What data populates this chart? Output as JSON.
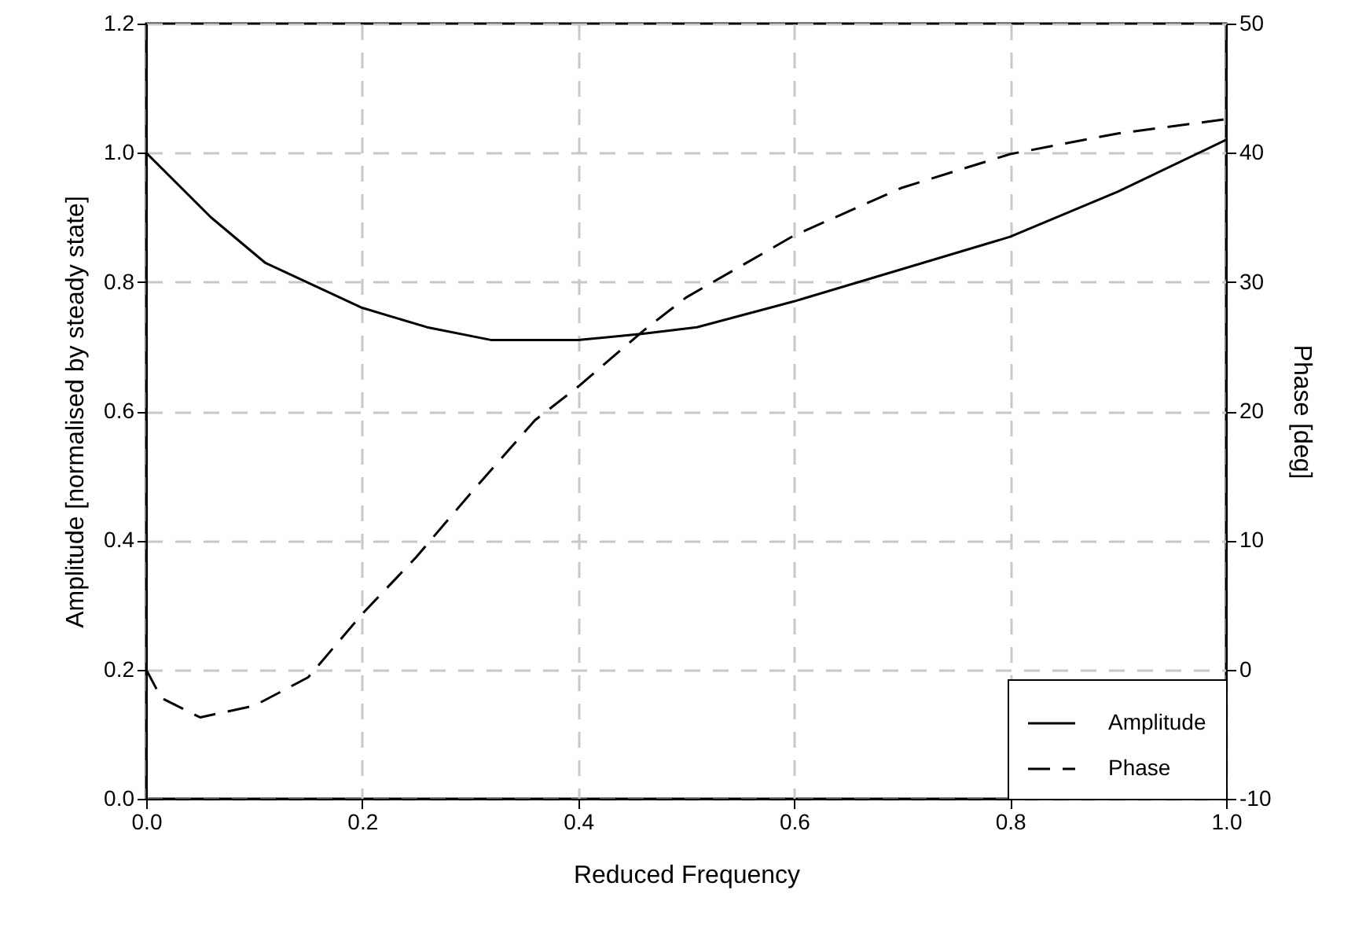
{
  "chart_data": {
    "type": "line",
    "xlabel": "Reduced Frequency",
    "ylabel": "Amplitude [normalised by steady state]",
    "y2label": "Phase [deg]",
    "xlim": [
      0,
      1
    ],
    "xticks": [
      {
        "value": 0,
        "label": "0.0"
      },
      {
        "value": 0.2,
        "label": "0.2"
      },
      {
        "value": 0.4,
        "label": "0.4"
      },
      {
        "value": 0.6,
        "label": "0.6"
      },
      {
        "value": 0.8,
        "label": "0.8"
      },
      {
        "value": 1,
        "label": "1.0"
      }
    ],
    "ylim": [
      0,
      1.2
    ],
    "yticks": [
      {
        "value": 0,
        "label": "0.0"
      },
      {
        "value": 0.2,
        "label": "0.2"
      },
      {
        "value": 0.4,
        "label": "0.4"
      },
      {
        "value": 0.6,
        "label": "0.6"
      },
      {
        "value": 0.8,
        "label": "0.8"
      },
      {
        "value": 1,
        "label": "1.0"
      },
      {
        "value": 1.2,
        "label": "1.2"
      }
    ],
    "y2lim": [
      -10,
      50
    ],
    "y2ticks": [
      -10,
      0,
      10,
      20,
      30,
      40,
      50
    ],
    "grid": true,
    "legend": "bottom right",
    "series": [
      {
        "name": "Amplitude",
        "color": "#000000",
        "line_style": "solid",
        "x": [
          0,
          0.06,
          0.11,
          0.2,
          0.26,
          0.32,
          0.4,
          0.46,
          0.51,
          0.6,
          0.7,
          0.8,
          0.9,
          1.0
        ],
        "values": [
          1.0,
          0.9,
          0.83,
          0.76,
          0.73,
          0.71,
          0.71,
          0.72,
          0.73,
          0.77,
          0.82,
          0.87,
          0.94,
          1.02
        ]
      },
      {
        "name": "Phase",
        "color": "#000000",
        "line_style": "dashed",
        "axis": "y2",
        "x": [
          0,
          0.014,
          0.05,
          0.1,
          0.15,
          0.2,
          0.25,
          0.3,
          0.36,
          0.4,
          0.46,
          0.5,
          0.6,
          0.7,
          0.8,
          0.9,
          1.0
        ],
        "values": [
          0,
          -2.2,
          -3.7,
          -2.8,
          -0.6,
          4.3,
          8.7,
          13.6,
          19.3,
          21.9,
          26.2,
          28.8,
          33.6,
          37.3,
          39.9,
          41.5,
          42.6
        ]
      }
    ]
  }
}
